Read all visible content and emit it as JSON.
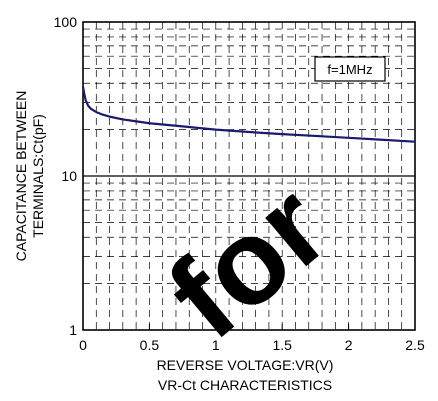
{
  "chart_data": {
    "type": "line",
    "title": "",
    "caption": "VR-Ct CHARACTERISTICS",
    "xlabel": "REVERSE VOLTAGE:VR(V)",
    "ylabel_lines": [
      "CAPACITANCE BETWEEN",
      "TERMINALS:Ct(pF)"
    ],
    "x_scale": "linear",
    "y_scale": "log",
    "xlim": [
      0,
      2.5
    ],
    "ylim": [
      1,
      100
    ],
    "x_ticks": [
      0,
      0.5,
      1,
      1.5,
      2,
      2.5
    ],
    "x_tick_labels": [
      "0",
      "0.5",
      "1",
      "1.5",
      "2",
      "2.5"
    ],
    "y_ticks": [
      1,
      10,
      100
    ],
    "y_tick_labels": [
      "1",
      "10",
      "100"
    ],
    "grid": true,
    "annotation": "f=1MHz",
    "series": [
      {
        "color": "#1a1a6e",
        "x": [
          0.0,
          0.01,
          0.02,
          0.04,
          0.06,
          0.1,
          0.15,
          0.2,
          0.3,
          0.5,
          0.75,
          1.0,
          1.25,
          1.5,
          1.75,
          2.0,
          2.25,
          2.5
        ],
        "y": [
          38,
          34,
          31,
          28.5,
          27.3,
          26.0,
          25.0,
          24.3,
          23.3,
          22.0,
          21.0,
          20.0,
          19.3,
          18.7,
          18.2,
          17.7,
          17.2,
          16.7
        ]
      }
    ]
  },
  "watermark": "for"
}
